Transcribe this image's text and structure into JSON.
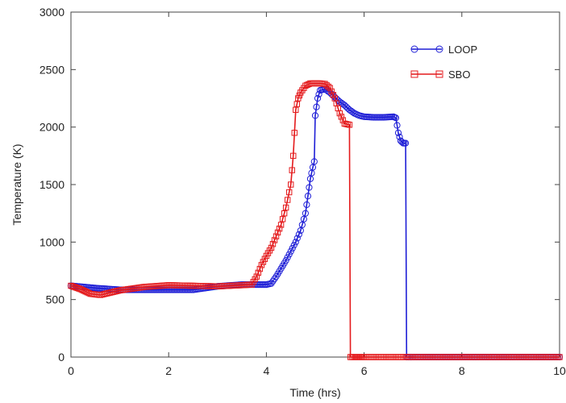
{
  "chart_data": {
    "type": "line",
    "xlabel": "Time (hrs)",
    "ylabel": "Temperature (K)",
    "xlim": [
      0,
      10
    ],
    "ylim": [
      0,
      3000
    ],
    "xticks": [
      "0",
      "2",
      "4",
      "6",
      "8",
      "10"
    ],
    "yticks": [
      "0",
      "500",
      "1000",
      "1500",
      "2000",
      "2500",
      "3000"
    ],
    "grid": false,
    "legend_position": "top-right",
    "series": [
      {
        "name": "LOOP",
        "color": "#1f1fd6",
        "marker": "circle",
        "points": [
          [
            0,
            620
          ],
          [
            0.5,
            600
          ],
          [
            1,
            585
          ],
          [
            1.5,
            585
          ],
          [
            2,
            585
          ],
          [
            2.5,
            585
          ],
          [
            3,
            615
          ],
          [
            3.5,
            630
          ],
          [
            4,
            630
          ],
          [
            4.1,
            640
          ],
          [
            4.2,
            700
          ],
          [
            4.3,
            770
          ],
          [
            4.4,
            840
          ],
          [
            4.5,
            920
          ],
          [
            4.6,
            1000
          ],
          [
            4.7,
            1100
          ],
          [
            4.8,
            1250
          ],
          [
            4.85,
            1400
          ],
          [
            4.9,
            1550
          ],
          [
            4.95,
            1650
          ],
          [
            4.98,
            1700
          ],
          [
            5.0,
            2100
          ],
          [
            5.05,
            2250
          ],
          [
            5.1,
            2320
          ],
          [
            5.2,
            2330
          ],
          [
            5.3,
            2300
          ],
          [
            5.4,
            2260
          ],
          [
            5.5,
            2220
          ],
          [
            5.6,
            2190
          ],
          [
            5.7,
            2150
          ],
          [
            5.8,
            2120
          ],
          [
            5.9,
            2100
          ],
          [
            6.0,
            2090
          ],
          [
            6.2,
            2085
          ],
          [
            6.4,
            2085
          ],
          [
            6.6,
            2090
          ],
          [
            6.65,
            2080
          ],
          [
            6.7,
            1950
          ],
          [
            6.75,
            1880
          ],
          [
            6.8,
            1860
          ],
          [
            6.85,
            1860
          ],
          [
            6.87,
            0
          ],
          [
            7,
            0
          ],
          [
            8,
            0
          ],
          [
            9,
            0
          ],
          [
            10,
            0
          ]
        ]
      },
      {
        "name": "SBO",
        "color": "#e41a1c",
        "marker": "square",
        "points": [
          [
            0,
            620
          ],
          [
            0.2,
            590
          ],
          [
            0.4,
            550
          ],
          [
            0.6,
            540
          ],
          [
            0.8,
            560
          ],
          [
            1.0,
            580
          ],
          [
            1.5,
            610
          ],
          [
            2.0,
            625
          ],
          [
            2.5,
            620
          ],
          [
            3.0,
            615
          ],
          [
            3.5,
            625
          ],
          [
            3.7,
            630
          ],
          [
            3.8,
            700
          ],
          [
            3.9,
            800
          ],
          [
            4.0,
            880
          ],
          [
            4.1,
            950
          ],
          [
            4.2,
            1050
          ],
          [
            4.3,
            1150
          ],
          [
            4.4,
            1300
          ],
          [
            4.5,
            1500
          ],
          [
            4.55,
            1750
          ],
          [
            4.6,
            2150
          ],
          [
            4.65,
            2250
          ],
          [
            4.7,
            2300
          ],
          [
            4.8,
            2360
          ],
          [
            4.9,
            2380
          ],
          [
            5.0,
            2380
          ],
          [
            5.1,
            2380
          ],
          [
            5.2,
            2375
          ],
          [
            5.3,
            2340
          ],
          [
            5.4,
            2250
          ],
          [
            5.5,
            2120
          ],
          [
            5.6,
            2030
          ],
          [
            5.7,
            2020
          ],
          [
            5.72,
            0
          ],
          [
            6,
            0
          ],
          [
            7,
            0
          ],
          [
            8,
            0
          ],
          [
            9,
            0
          ],
          [
            10,
            0
          ]
        ]
      }
    ]
  }
}
